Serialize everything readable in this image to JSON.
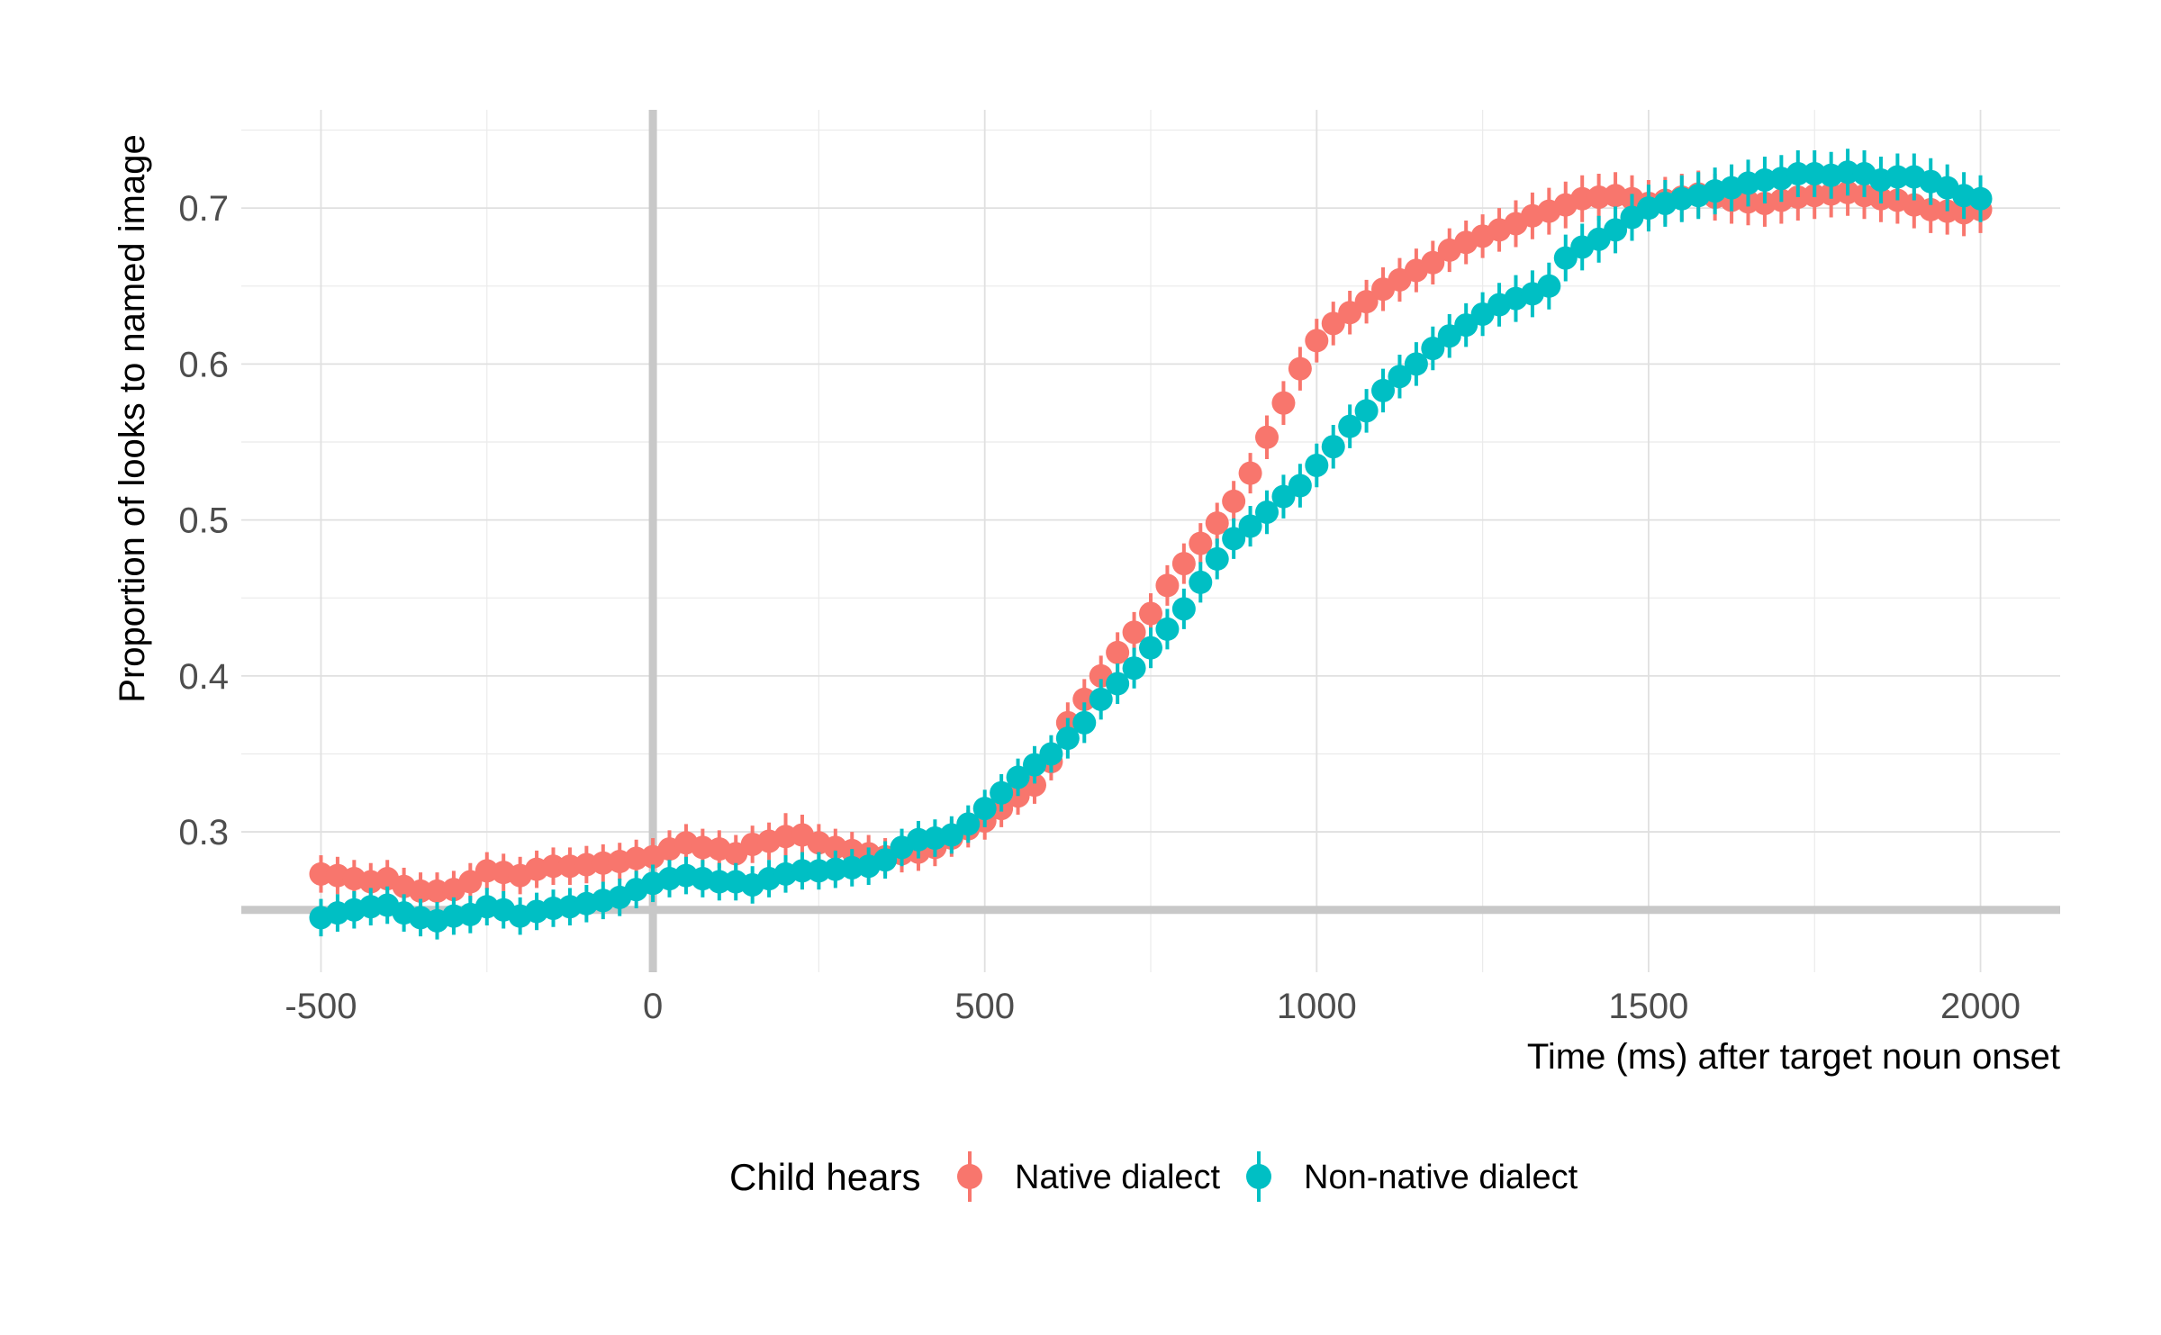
{
  "chart_data": {
    "type": "scatter",
    "xlabel": "Time (ms) after target noun onset",
    "ylabel": "Proportion of looks to named image",
    "xlim": [
      -620,
      2120
    ],
    "ylim": [
      0.21,
      0.763
    ],
    "x_ticks": [
      -500,
      0,
      500,
      1000,
      1500,
      2000
    ],
    "x_tick_labels": [
      "-500",
      "0",
      "500",
      "1000",
      "1500",
      "2000"
    ],
    "y_ticks": [
      0.3,
      0.4,
      0.5,
      0.6,
      0.7
    ],
    "y_tick_labels": [
      "0.3",
      "0.4",
      "0.5",
      "0.6",
      "0.7"
    ],
    "reference_lines": {
      "vertical_x": 0,
      "horizontal_y": 0.25
    },
    "grid": true,
    "legend": {
      "title": "Child hears",
      "position": "bottom"
    },
    "series": [
      {
        "name": "Native dialect",
        "color": "#F8766D",
        "x": [
          -500,
          -475,
          -450,
          -425,
          -400,
          -375,
          -350,
          -325,
          -300,
          -275,
          -250,
          -225,
          -200,
          -175,
          -150,
          -125,
          -100,
          -75,
          -50,
          -25,
          0,
          25,
          50,
          75,
          100,
          125,
          150,
          175,
          200,
          225,
          250,
          275,
          300,
          325,
          350,
          375,
          400,
          425,
          450,
          475,
          500,
          525,
          550,
          575,
          600,
          625,
          650,
          675,
          700,
          725,
          750,
          775,
          800,
          825,
          850,
          875,
          900,
          925,
          950,
          975,
          1000,
          1025,
          1050,
          1075,
          1100,
          1125,
          1150,
          1175,
          1200,
          1225,
          1250,
          1275,
          1300,
          1325,
          1350,
          1375,
          1400,
          1425,
          1450,
          1475,
          1500,
          1525,
          1550,
          1575,
          1600,
          1625,
          1650,
          1675,
          1700,
          1725,
          1750,
          1775,
          1800,
          1825,
          1850,
          1875,
          1900,
          1925,
          1950,
          1975,
          2000
        ],
        "y": [
          0.273,
          0.272,
          0.27,
          0.268,
          0.27,
          0.265,
          0.262,
          0.262,
          0.263,
          0.268,
          0.275,
          0.274,
          0.272,
          0.276,
          0.278,
          0.278,
          0.279,
          0.28,
          0.281,
          0.283,
          0.284,
          0.289,
          0.293,
          0.29,
          0.289,
          0.286,
          0.292,
          0.294,
          0.297,
          0.298,
          0.293,
          0.29,
          0.288,
          0.286,
          0.284,
          0.286,
          0.287,
          0.29,
          0.296,
          0.302,
          0.307,
          0.315,
          0.323,
          0.33,
          0.345,
          0.37,
          0.385,
          0.4,
          0.415,
          0.428,
          0.44,
          0.458,
          0.472,
          0.485,
          0.498,
          0.512,
          0.53,
          0.553,
          0.575,
          0.597,
          0.615,
          0.626,
          0.633,
          0.64,
          0.648,
          0.654,
          0.66,
          0.665,
          0.673,
          0.678,
          0.682,
          0.686,
          0.69,
          0.695,
          0.698,
          0.702,
          0.706,
          0.707,
          0.708,
          0.706,
          0.703,
          0.705,
          0.707,
          0.709,
          0.707,
          0.705,
          0.704,
          0.703,
          0.705,
          0.707,
          0.708,
          0.709,
          0.71,
          0.708,
          0.706,
          0.705,
          0.702,
          0.699,
          0.698,
          0.697,
          0.699
        ],
        "error": [
          0.012,
          0.012,
          0.012,
          0.012,
          0.012,
          0.012,
          0.012,
          0.012,
          0.012,
          0.012,
          0.012,
          0.012,
          0.012,
          0.012,
          0.012,
          0.012,
          0.012,
          0.012,
          0.012,
          0.012,
          0.012,
          0.012,
          0.012,
          0.012,
          0.012,
          0.012,
          0.012,
          0.012,
          0.015,
          0.013,
          0.012,
          0.012,
          0.012,
          0.012,
          0.012,
          0.012,
          0.012,
          0.012,
          0.012,
          0.012,
          0.012,
          0.012,
          0.012,
          0.012,
          0.012,
          0.013,
          0.013,
          0.013,
          0.013,
          0.013,
          0.013,
          0.013,
          0.013,
          0.013,
          0.013,
          0.013,
          0.013,
          0.014,
          0.014,
          0.014,
          0.014,
          0.014,
          0.014,
          0.014,
          0.014,
          0.014,
          0.014,
          0.014,
          0.014,
          0.014,
          0.014,
          0.014,
          0.015,
          0.015,
          0.015,
          0.015,
          0.015,
          0.015,
          0.015,
          0.015,
          0.015,
          0.015,
          0.015,
          0.015,
          0.015,
          0.015,
          0.015,
          0.015,
          0.015,
          0.015,
          0.015,
          0.015,
          0.015,
          0.015,
          0.015,
          0.015,
          0.015,
          0.015,
          0.015,
          0.015,
          0.015
        ]
      },
      {
        "name": "Non-native dialect",
        "color": "#00BFC4",
        "x": [
          -500,
          -475,
          -450,
          -425,
          -400,
          -375,
          -350,
          -325,
          -300,
          -275,
          -250,
          -225,
          -200,
          -175,
          -150,
          -125,
          -100,
          -75,
          -50,
          -25,
          0,
          25,
          50,
          75,
          100,
          125,
          150,
          175,
          200,
          225,
          250,
          275,
          300,
          325,
          350,
          375,
          400,
          425,
          450,
          475,
          500,
          525,
          550,
          575,
          600,
          625,
          650,
          675,
          700,
          725,
          750,
          775,
          800,
          825,
          850,
          875,
          900,
          925,
          950,
          975,
          1000,
          1025,
          1050,
          1075,
          1100,
          1125,
          1150,
          1175,
          1200,
          1225,
          1250,
          1275,
          1300,
          1325,
          1350,
          1375,
          1400,
          1425,
          1450,
          1475,
          1500,
          1525,
          1550,
          1575,
          1600,
          1625,
          1650,
          1675,
          1700,
          1725,
          1750,
          1775,
          1800,
          1825,
          1850,
          1875,
          1900,
          1925,
          1950,
          1975,
          2000
        ],
        "y": [
          0.245,
          0.248,
          0.25,
          0.252,
          0.253,
          0.248,
          0.245,
          0.243,
          0.246,
          0.247,
          0.252,
          0.25,
          0.246,
          0.249,
          0.251,
          0.252,
          0.254,
          0.256,
          0.258,
          0.263,
          0.267,
          0.27,
          0.272,
          0.27,
          0.268,
          0.268,
          0.266,
          0.27,
          0.273,
          0.275,
          0.275,
          0.276,
          0.277,
          0.278,
          0.282,
          0.29,
          0.295,
          0.296,
          0.298,
          0.305,
          0.315,
          0.325,
          0.335,
          0.343,
          0.35,
          0.36,
          0.37,
          0.385,
          0.395,
          0.405,
          0.418,
          0.43,
          0.443,
          0.46,
          0.475,
          0.488,
          0.496,
          0.505,
          0.515,
          0.522,
          0.535,
          0.547,
          0.56,
          0.57,
          0.583,
          0.592,
          0.6,
          0.61,
          0.618,
          0.625,
          0.632,
          0.638,
          0.642,
          0.645,
          0.65,
          0.668,
          0.675,
          0.68,
          0.686,
          0.694,
          0.7,
          0.703,
          0.706,
          0.708,
          0.711,
          0.713,
          0.716,
          0.718,
          0.719,
          0.722,
          0.722,
          0.721,
          0.723,
          0.722,
          0.718,
          0.72,
          0.72,
          0.717,
          0.713,
          0.708,
          0.706
        ],
        "error": [
          0.012,
          0.012,
          0.012,
          0.012,
          0.012,
          0.012,
          0.012,
          0.012,
          0.012,
          0.012,
          0.012,
          0.012,
          0.012,
          0.012,
          0.012,
          0.012,
          0.012,
          0.012,
          0.012,
          0.012,
          0.012,
          0.012,
          0.012,
          0.012,
          0.012,
          0.012,
          0.012,
          0.012,
          0.012,
          0.012,
          0.012,
          0.012,
          0.012,
          0.012,
          0.012,
          0.012,
          0.012,
          0.012,
          0.012,
          0.012,
          0.012,
          0.012,
          0.012,
          0.012,
          0.012,
          0.013,
          0.013,
          0.013,
          0.013,
          0.013,
          0.013,
          0.013,
          0.013,
          0.013,
          0.013,
          0.013,
          0.013,
          0.014,
          0.014,
          0.014,
          0.014,
          0.014,
          0.014,
          0.014,
          0.014,
          0.014,
          0.014,
          0.014,
          0.014,
          0.014,
          0.014,
          0.014,
          0.015,
          0.015,
          0.015,
          0.015,
          0.015,
          0.015,
          0.015,
          0.015,
          0.015,
          0.015,
          0.015,
          0.015,
          0.015,
          0.015,
          0.015,
          0.015,
          0.015,
          0.015,
          0.015,
          0.015,
          0.015,
          0.015,
          0.015,
          0.015,
          0.015,
          0.015,
          0.015,
          0.015,
          0.015
        ]
      }
    ]
  }
}
